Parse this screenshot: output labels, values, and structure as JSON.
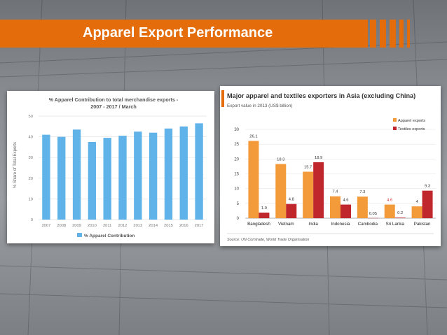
{
  "slide": {
    "title": "Apparel Export Performance"
  },
  "colors": {
    "accent": "#e46c0a",
    "bar_blue": "#5fb3e8",
    "apparel": "#f39a3b",
    "textiles": "#c0272d"
  },
  "chart_data": [
    {
      "type": "bar",
      "title": "% Apparel Contribution to total merchandise exports - 2007 - 2017 / March",
      "title_line1": "% Apparel Contribution to total merchandise exports -",
      "title_line2": "2007 - 2017 / March",
      "ylabel": "% Share of Total Exports",
      "ylim": [
        0,
        50
      ],
      "yticks": [
        0,
        10,
        20,
        30,
        40,
        50
      ],
      "categories": [
        "2007",
        "2008",
        "2009",
        "2010",
        "2011",
        "2012",
        "2013",
        "2014",
        "2015",
        "2016",
        "2017"
      ],
      "series": [
        {
          "name": "% Apparel Contribution",
          "values": [
            41,
            40,
            43.5,
            37.5,
            39.5,
            40.5,
            42.5,
            42,
            44,
            45,
            46.5
          ]
        }
      ],
      "legend": "bottom",
      "grid": true
    },
    {
      "type": "bar",
      "title": "Major apparel and textiles exporters in Asia (excluding China)",
      "subtitle": "Export value in 2013 (US$ billion)",
      "ylim": [
        0,
        30
      ],
      "yticks": [
        0,
        5,
        10,
        15,
        20,
        25,
        30
      ],
      "categories": [
        "Bangladesh",
        "Vietnam",
        "India",
        "Indonesia",
        "Cambodia",
        "Sri Lanka",
        "Pakistan"
      ],
      "series": [
        {
          "name": "Apparel exports",
          "values": [
            26.1,
            18.3,
            15.7,
            7.4,
            7.3,
            4.6,
            4
          ]
        },
        {
          "name": "Textiles exports",
          "values": [
            1.9,
            4.8,
            18.9,
            4.6,
            0.05,
            0.2,
            9.3
          ]
        }
      ],
      "value_labels_apparel": [
        "26.1",
        "18.3",
        "15.7",
        "7.4",
        "7.3",
        "4.6",
        "4"
      ],
      "value_labels_textiles": [
        "1.9",
        "4.8",
        "18.9",
        "4.6",
        "0.05",
        "0.2",
        "9.3"
      ],
      "legend": "top-right",
      "source": "Source: UN Comtrade, World Trade Organisation"
    }
  ]
}
